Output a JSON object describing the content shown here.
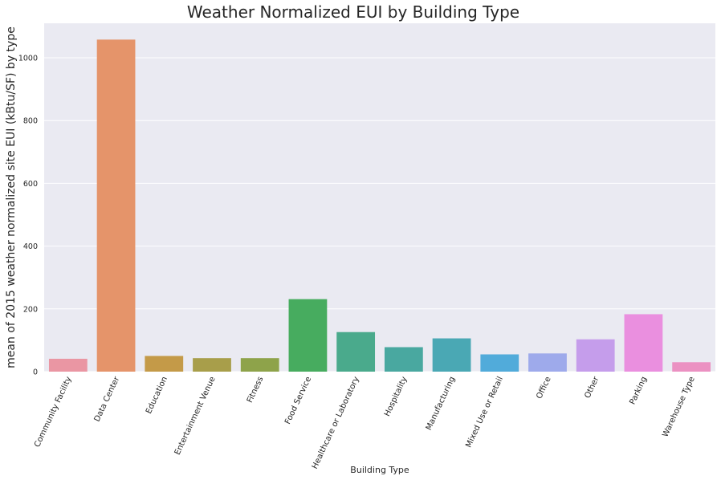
{
  "chart_data": {
    "type": "bar",
    "title": "Weather Normalized EUI by Building Type",
    "xlabel": "Building Type",
    "ylabel": "mean of 2015 weather normalized site EUI (kBtu/SF) by type",
    "ylim": [
      0,
      1110
    ],
    "yticks": [
      0,
      200,
      400,
      600,
      800,
      1000
    ],
    "grid": true,
    "categories": [
      "Community Facility",
      "Data Center",
      "Education",
      "Entertainment Venue",
      "Fitness",
      "Food Service",
      "Healthcare or Laboratory",
      "Hospitality",
      "Manufacturing",
      "Mixed Use or Retail",
      "Office",
      "Other",
      "Parking",
      "Warehouse Type"
    ],
    "values": [
      41,
      1058,
      50,
      43,
      43,
      231,
      126,
      78,
      106,
      55,
      58,
      103,
      183,
      30
    ],
    "colors": [
      "#ea96a3",
      "#e5946a",
      "#c49a48",
      "#a89e4a",
      "#8ea34a",
      "#47ac5f",
      "#4aaa8c",
      "#49a8a0",
      "#4aa8b4",
      "#51abda",
      "#9eaaeb",
      "#c59deb",
      "#ea8fdf",
      "#eb91c2"
    ]
  }
}
